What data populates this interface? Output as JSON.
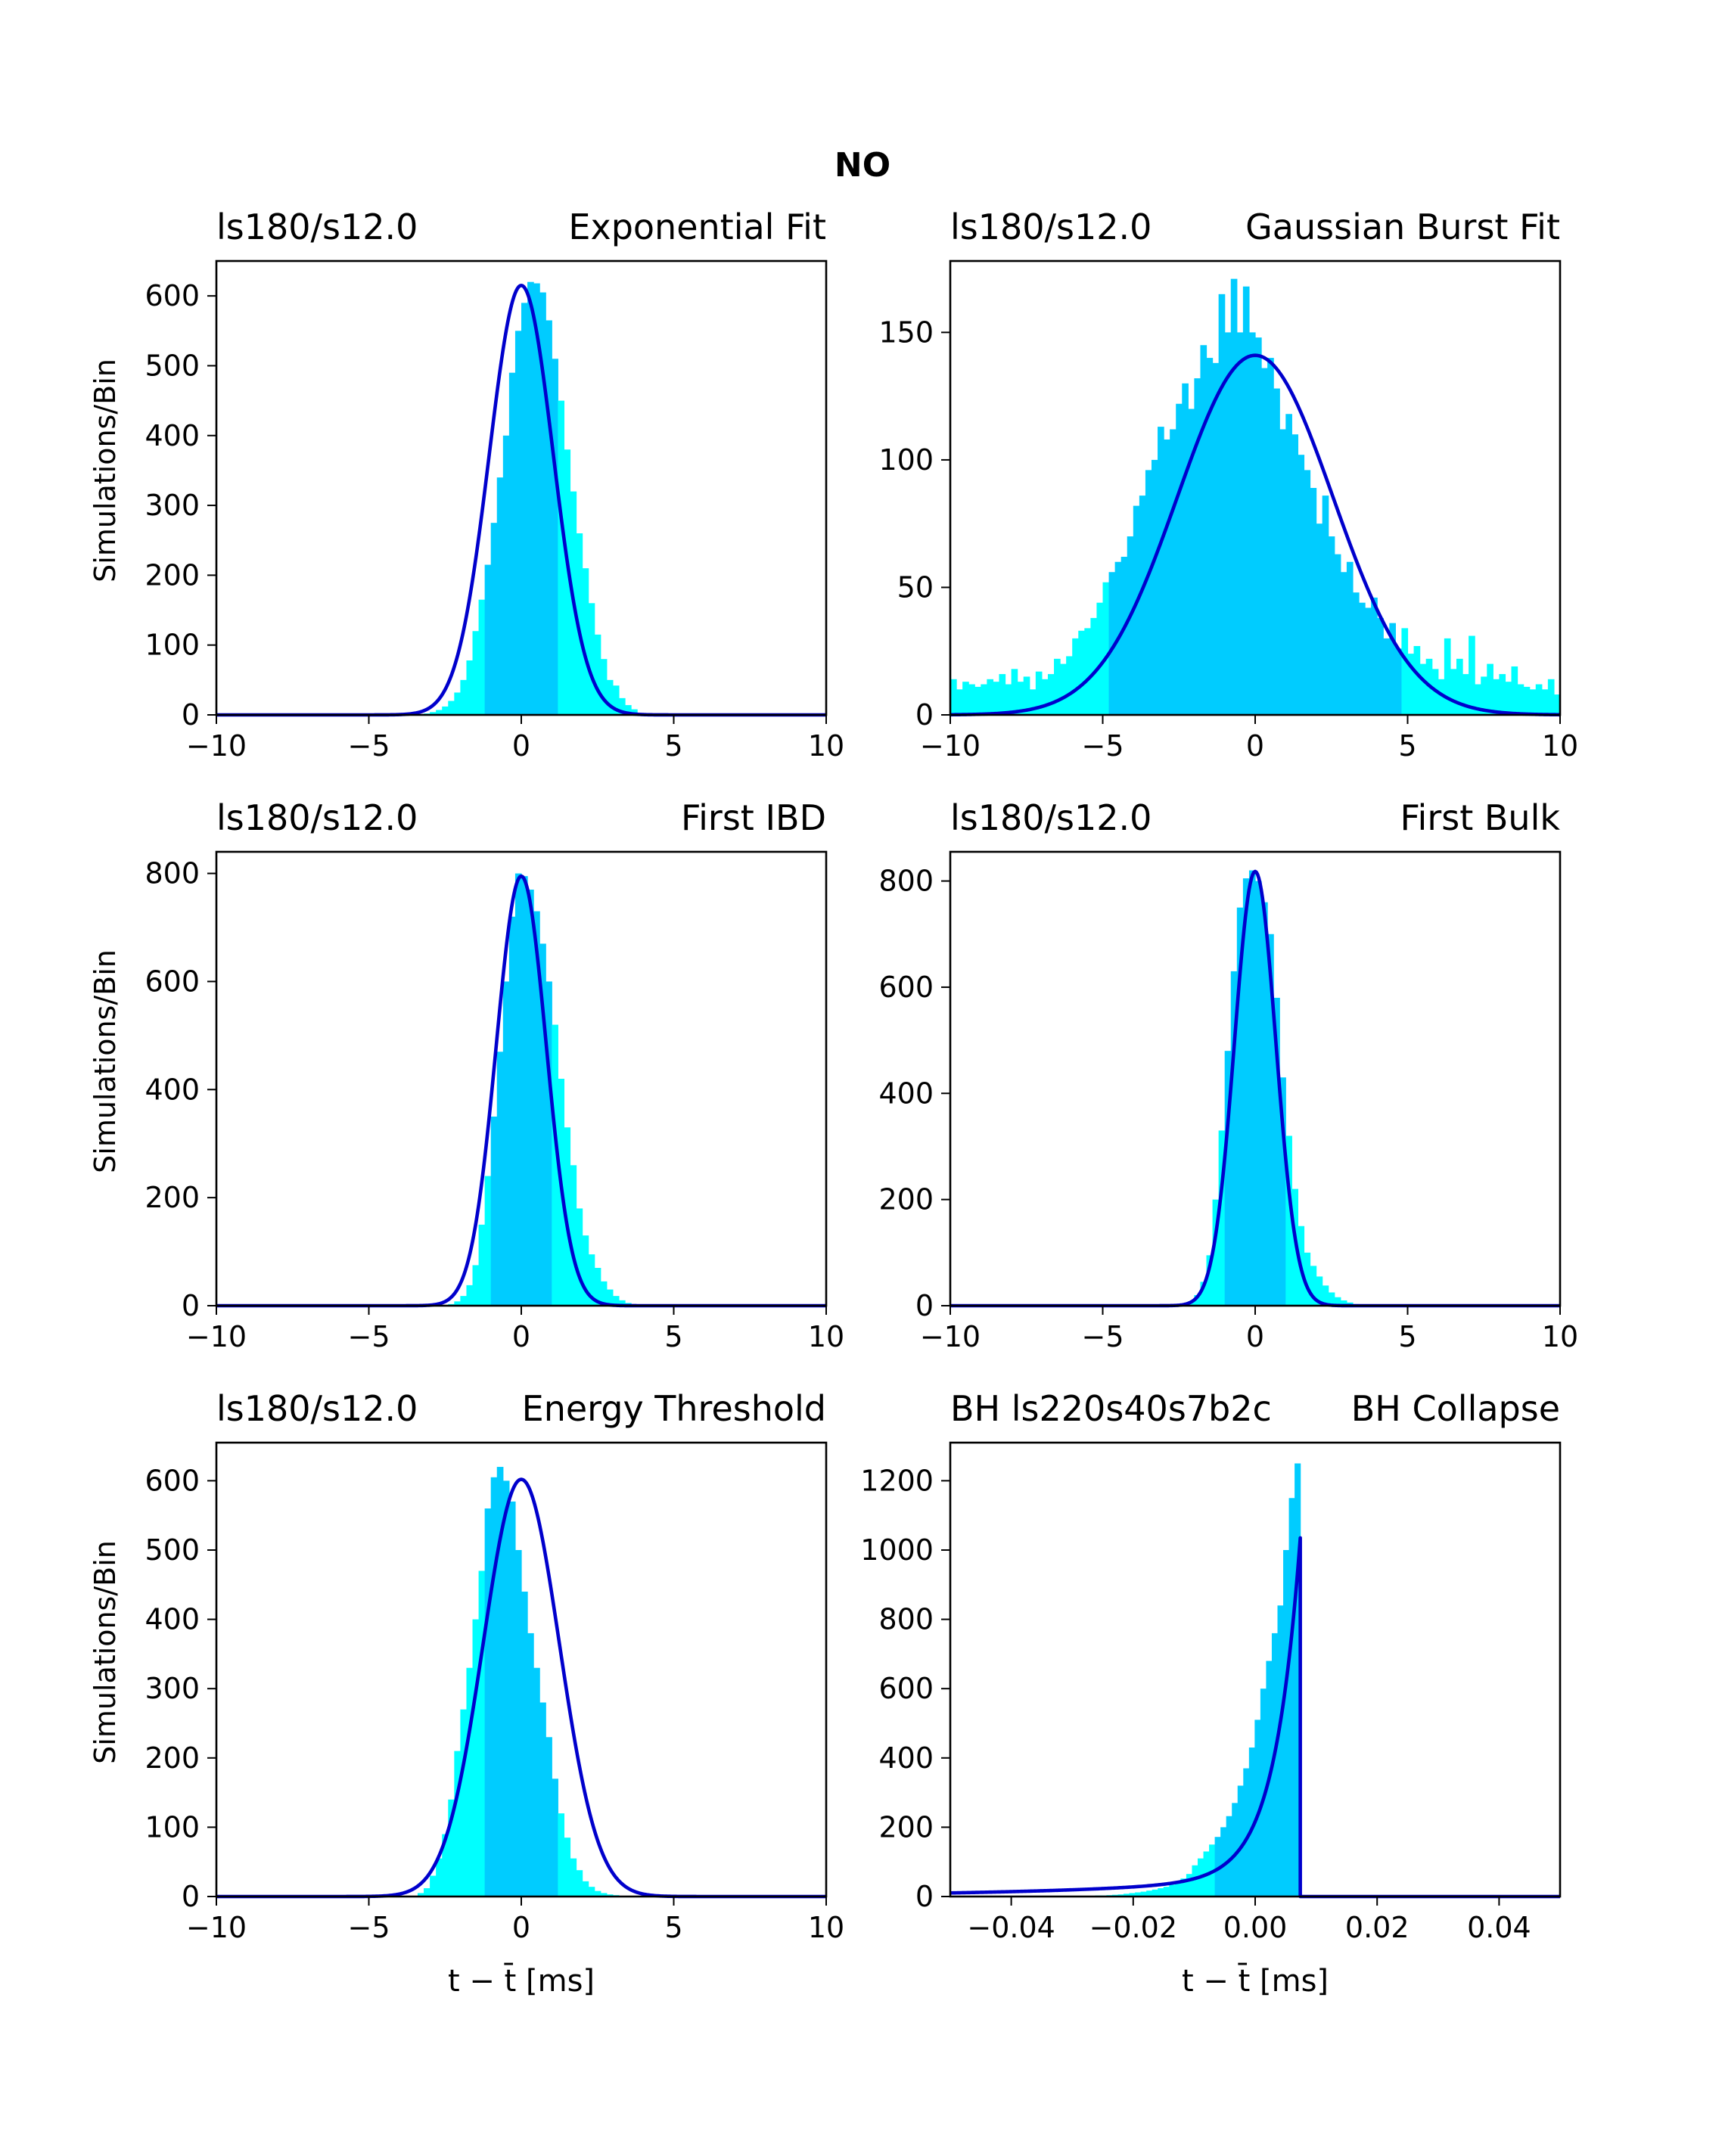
{
  "figure_title": "NO",
  "colors": {
    "hist_outer": "#00ffff",
    "hist_inner": "#00ccff",
    "fit_curve": "#0000cc",
    "axes": "#000000",
    "background": "#ffffff"
  },
  "chart_data": [
    {
      "type": "bar",
      "id": "exp",
      "title_left": "ls180/s12.0",
      "title_right": "Exponential Fit",
      "ylabel": "Simulations/Bin",
      "xlabel": "",
      "xlim": [
        -10,
        10
      ],
      "ylim": [
        0,
        650
      ],
      "xticks": [
        -10,
        -5,
        0,
        5,
        10
      ],
      "xtick_labels": [
        "−10",
        "−5",
        "0",
        "5",
        "10"
      ],
      "yticks": [
        0,
        100,
        200,
        300,
        400,
        500,
        600
      ],
      "ytick_labels": [
        "0",
        "100",
        "200",
        "300",
        "400",
        "500",
        "600"
      ],
      "bin_range": [
        -3.4,
        3.8
      ],
      "bin_values": [
        1,
        2,
        4,
        7,
        12,
        20,
        32,
        50,
        78,
        120,
        165,
        215,
        275,
        340,
        400,
        490,
        550,
        590,
        620,
        618,
        605,
        565,
        510,
        450,
        380,
        320,
        260,
        210,
        160,
        115,
        80,
        50,
        42,
        24,
        14,
        8
      ],
      "inner_range": [
        -1.2,
        1.2
      ],
      "fit": {
        "kind": "gauss",
        "amp": 615,
        "mu": 0.0,
        "sigma": 1.05
      }
    },
    {
      "type": "bar",
      "id": "gauss",
      "title_left": "ls180/s12.0",
      "title_right": "Gaussian Burst Fit",
      "ylabel": "",
      "xlabel": "",
      "xlim": [
        -10,
        10
      ],
      "ylim": [
        0,
        178
      ],
      "xticks": [
        -10,
        -5,
        0,
        5,
        10
      ],
      "xtick_labels": [
        "−10",
        "−5",
        "0",
        "5",
        "10"
      ],
      "yticks": [
        0,
        50,
        100,
        150
      ],
      "ytick_labels": [
        "0",
        "50",
        "100",
        "150"
      ],
      "bin_range": [
        -10,
        10
      ],
      "bin_values": [
        14,
        10,
        13,
        12,
        11,
        12,
        14,
        13,
        16,
        12,
        18,
        13,
        15,
        10,
        17,
        14,
        16,
        22,
        20,
        23,
        30,
        33,
        34,
        38,
        44,
        52,
        56,
        60,
        62,
        70,
        82,
        86,
        96,
        100,
        113,
        108,
        112,
        122,
        130,
        120,
        132,
        145,
        140,
        138,
        165,
        150,
        171,
        150,
        168,
        150,
        148,
        136,
        140,
        128,
        112,
        118,
        110,
        102,
        96,
        89,
        75,
        86,
        70,
        63,
        56,
        60,
        48,
        44,
        42,
        46,
        38,
        30,
        36,
        26,
        34,
        24,
        27,
        20,
        22,
        18,
        14,
        30,
        18,
        22,
        16,
        31,
        12,
        15,
        20,
        14,
        16,
        13,
        19,
        12,
        11,
        10,
        12,
        10,
        14,
        8
      ],
      "inner_range": [
        -4.8,
        4.8
      ],
      "fit": {
        "kind": "gauss",
        "amp": 141,
        "mu": 0.0,
        "sigma": 2.55
      }
    },
    {
      "type": "bar",
      "id": "ibd",
      "title_left": "ls180/s12.0",
      "title_right": "First IBD",
      "ylabel": "Simulations/Bin",
      "xlabel": "",
      "xlim": [
        -10,
        10
      ],
      "ylim": [
        0,
        840
      ],
      "xticks": [
        -10,
        -5,
        0,
        5,
        10
      ],
      "xtick_labels": [
        "−10",
        "−5",
        "0",
        "5",
        "10"
      ],
      "yticks": [
        0,
        200,
        400,
        600,
        800
      ],
      "ytick_labels": [
        "0",
        "200",
        "400",
        "600",
        "800"
      ],
      "bin_range": [
        -2.4,
        3.6
      ],
      "bin_values": [
        3,
        8,
        18,
        38,
        75,
        150,
        240,
        350,
        470,
        600,
        720,
        800,
        795,
        770,
        730,
        670,
        600,
        520,
        420,
        330,
        260,
        180,
        130,
        95,
        70,
        45,
        30,
        18,
        10,
        5
      ],
      "inner_range": [
        -1.0,
        1.0
      ],
      "fit": {
        "kind": "gauss",
        "amp": 795,
        "mu": 0.0,
        "sigma": 0.82
      }
    },
    {
      "type": "bar",
      "id": "bulk",
      "title_left": "ls180/s12.0",
      "title_right": "First Bulk",
      "ylabel": "",
      "xlabel": "",
      "xlim": [
        -10,
        10
      ],
      "ylim": [
        0,
        855
      ],
      "xticks": [
        -10,
        -5,
        0,
        5,
        10
      ],
      "xtick_labels": [
        "−10",
        "−5",
        "0",
        "5",
        "10"
      ],
      "yticks": [
        0,
        200,
        400,
        600,
        800
      ],
      "ytick_labels": [
        "0",
        "200",
        "400",
        "600",
        "800"
      ],
      "bin_range": [
        -2.4,
        3.6
      ],
      "bin_values": [
        3,
        8,
        20,
        45,
        95,
        200,
        330,
        480,
        630,
        750,
        805,
        820,
        800,
        760,
        700,
        580,
        430,
        320,
        220,
        150,
        100,
        75,
        55,
        38,
        25,
        16,
        10,
        6,
        3,
        2
      ],
      "inner_range": [
        -1.0,
        1.0
      ],
      "fit": {
        "kind": "gauss",
        "amp": 818,
        "mu": 0.0,
        "sigma": 0.68
      }
    },
    {
      "type": "bar",
      "id": "energy",
      "title_left": "ls180/s12.0",
      "title_right": "Energy Threshold",
      "ylabel": "Simulations/Bin",
      "xlabel": "t − t̄ [ms]",
      "xlim": [
        -10,
        10
      ],
      "ylim": [
        0,
        655
      ],
      "xticks": [
        -10,
        -5,
        0,
        5,
        10
      ],
      "xtick_labels": [
        "−10",
        "−5",
        "0",
        "5",
        "10"
      ],
      "yticks": [
        0,
        100,
        200,
        300,
        400,
        500,
        600
      ],
      "ytick_labels": [
        "0",
        "100",
        "200",
        "300",
        "400",
        "500",
        "600"
      ],
      "bin_range": [
        -3.4,
        4.2
      ],
      "bin_values": [
        5,
        12,
        30,
        55,
        90,
        140,
        210,
        270,
        330,
        400,
        470,
        560,
        605,
        620,
        600,
        570,
        500,
        440,
        380,
        330,
        280,
        230,
        170,
        120,
        85,
        55,
        38,
        22,
        14,
        8,
        5,
        3,
        2,
        1,
        1,
        0,
        0,
        0
      ],
      "inner_range": [
        -1.2,
        1.2
      ],
      "fit": {
        "kind": "gauss",
        "amp": 602,
        "mu": 0.0,
        "sigma": 1.25
      }
    },
    {
      "type": "bar",
      "id": "bh",
      "title_left": "BH ls220s40s7b2c",
      "title_right": "BH Collapse",
      "ylabel": "",
      "xlabel": "t − t̄ [ms]",
      "xlim": [
        -0.05,
        0.05
      ],
      "ylim": [
        0,
        1310
      ],
      "xticks": [
        -0.04,
        -0.02,
        0.0,
        0.02,
        0.04
      ],
      "xtick_labels": [
        "−0.04",
        "−0.02",
        "0.00",
        "0.02",
        "0.04"
      ],
      "yticks": [
        0,
        200,
        400,
        600,
        800,
        1000,
        1200
      ],
      "ytick_labels": [
        "0",
        "200",
        "400",
        "600",
        "800",
        "1000",
        "1200"
      ],
      "bin_range": [
        -0.03,
        0.0074
      ],
      "bin_values": [
        1,
        1,
        2,
        2,
        3,
        3,
        4,
        5,
        6,
        8,
        10,
        12,
        14,
        17,
        20,
        24,
        28,
        34,
        42,
        52,
        65,
        90,
        110,
        130,
        150,
        172,
        200,
        232,
        270,
        320,
        370,
        430,
        510,
        600,
        680,
        760,
        840,
        1000,
        1150,
        1250
      ],
      "inner_range": [
        -0.007,
        0.0074
      ],
      "fit": {
        "kind": "bh",
        "amp": 1035,
        "t0": 0.0074,
        "decay": 0.0042,
        "tail_amp": 62,
        "tail_decay": 0.032
      }
    }
  ]
}
